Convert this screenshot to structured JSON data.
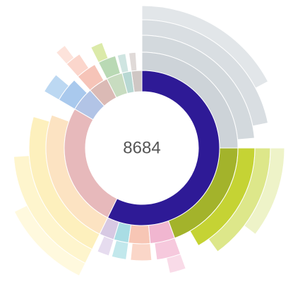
{
  "chart_data": {
    "type": "sunburst",
    "total": 8684,
    "nodes": [
      {
        "value": 4972,
        "color": "#2e1a96",
        "children": [
          {
            "value": 2171,
            "color": "#cdd3d8",
            "children": [
              {
                "value": 2050,
                "color": "#d3d9dd",
                "children": [
                  {
                    "value": 1900,
                    "color": "#d9dee2",
                    "children": [
                      {
                        "value": 1500,
                        "color": "#e2e6e9"
                      }
                    ]
                  }
                ]
              }
            ]
          },
          {
            "value": 1689,
            "color": "#a3b32b",
            "children": [
              {
                "value": 1447,
                "color": "#c5d334",
                "children": [
                  {
                    "value": 1300,
                    "color": "#dde78a",
                    "children": [
                      {
                        "value": 900,
                        "color": "#eef3c8"
                      }
                    ]
                  }
                ]
              }
            ]
          },
          {
            "value": 362,
            "color": "#f1b6d0",
            "children": [
              {
                "value": 300,
                "color": "#f6c9dd",
                "children": [
                  {
                    "value": 180,
                    "color": "#f9dbe8"
                  }
                ]
              }
            ]
          },
          {
            "value": 314,
            "color": "#f7c6b5",
            "children": [
              {
                "value": 260,
                "color": "#fad6c8"
              }
            ]
          },
          {
            "value": 217,
            "color": "#a9dde4",
            "children": [
              {
                "value": 180,
                "color": "#c2e8ec"
              }
            ]
          },
          {
            "value": 219,
            "color": "#d7c9e3",
            "children": [
              {
                "value": 150,
                "color": "#e6dcef"
              }
            ]
          }
        ]
      },
      {
        "value": 2268,
        "color": "#e7b9bb",
        "children": [
          {
            "value": 2027,
            "color": "#fce3c2",
            "children": [
              {
                "value": 1930,
                "color": "#fdf0bd",
                "children": [
                  {
                    "value": 1448,
                    "color": "#fef5cd",
                    "children": [
                      {
                        "value": 900,
                        "color": "#fff9de"
                      }
                    ]
                  }
                ]
              }
            ]
          }
        ]
      },
      {
        "value": 434,
        "color": "#b2c4e6",
        "children": [
          {
            "value": 362,
            "color": "#a9c9ed",
            "children": [
              {
                "value": 250,
                "color": "#bcd8f2"
              }
            ]
          }
        ]
      },
      {
        "value": 362,
        "color": "#dbbab5",
        "children": [
          {
            "value": 300,
            "color": "#f6c4b8",
            "children": [
              {
                "value": 200,
                "color": "#fbd6cc",
                "children": [
                  {
                    "value": 120,
                    "color": "#fde3db"
                  }
                ]
              }
            ]
          }
        ]
      },
      {
        "value": 290,
        "color": "#c8dcc0",
        "children": [
          {
            "value": 260,
            "color": "#b9d9b4",
            "children": [
              {
                "value": 150,
                "color": "#dbeaa9"
              }
            ]
          }
        ]
      },
      {
        "value": 169,
        "color": "#b8d8d3",
        "children": [
          {
            "value": 120,
            "color": "#cfe5e1"
          }
        ]
      },
      {
        "value": 189,
        "color": "#cfc7c4",
        "children": [
          {
            "value": 100,
            "color": "#e0dad8"
          }
        ]
      }
    ]
  }
}
